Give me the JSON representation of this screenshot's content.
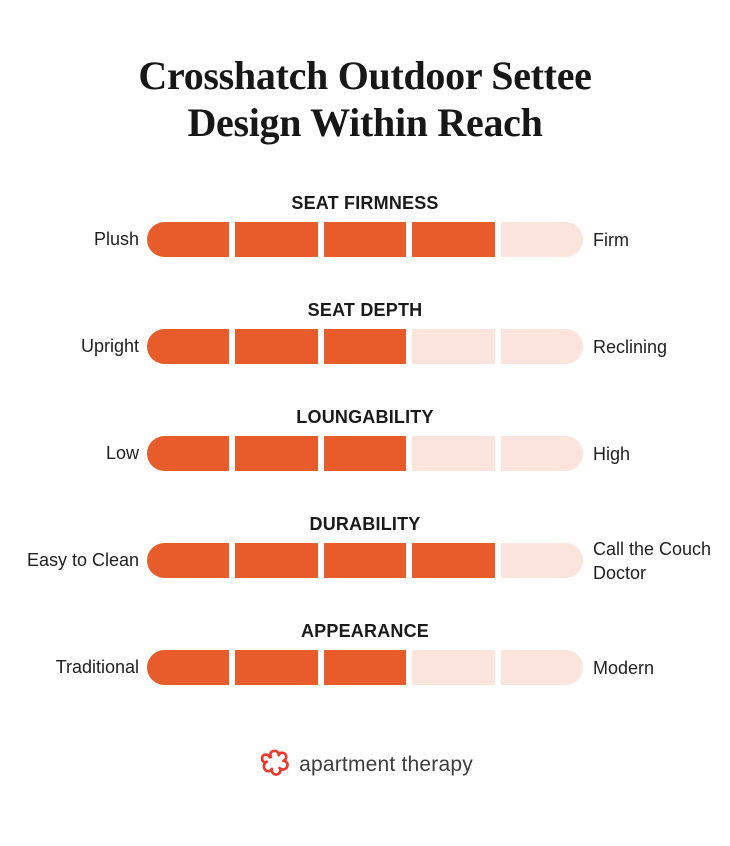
{
  "title": {
    "line1": "Crosshatch Outdoor Settee",
    "line2": "Design Within Reach"
  },
  "colors": {
    "filled": "#e85c2c",
    "unfilled": "#fbe4db",
    "title_text": "#171717",
    "label_text": "#212121",
    "logo_red": "#e8392b",
    "logo_text": "#3d3d3d"
  },
  "chart_data": {
    "type": "bar",
    "title": "Crosshatch Outdoor Settee Design Within Reach",
    "scale_max": 5,
    "legend_position": "none",
    "grid": false,
    "rows": [
      {
        "category": "SEAT FIRMNESS",
        "left_label": "Plush",
        "right_label": "Firm",
        "value": 4
      },
      {
        "category": "SEAT DEPTH",
        "left_label": "Upright",
        "right_label": "Reclining",
        "value": 3
      },
      {
        "category": "LOUNGABILITY",
        "left_label": "Low",
        "right_label": "High",
        "value": 3
      },
      {
        "category": "DURABILITY",
        "left_label": "Easy to Clean",
        "right_label": "Call the Couch Doctor",
        "value": 4
      },
      {
        "category": "APPEARANCE",
        "left_label": "Traditional",
        "right_label": "Modern",
        "value": 3
      }
    ]
  },
  "footer": {
    "logo_text": "apartment therapy"
  }
}
